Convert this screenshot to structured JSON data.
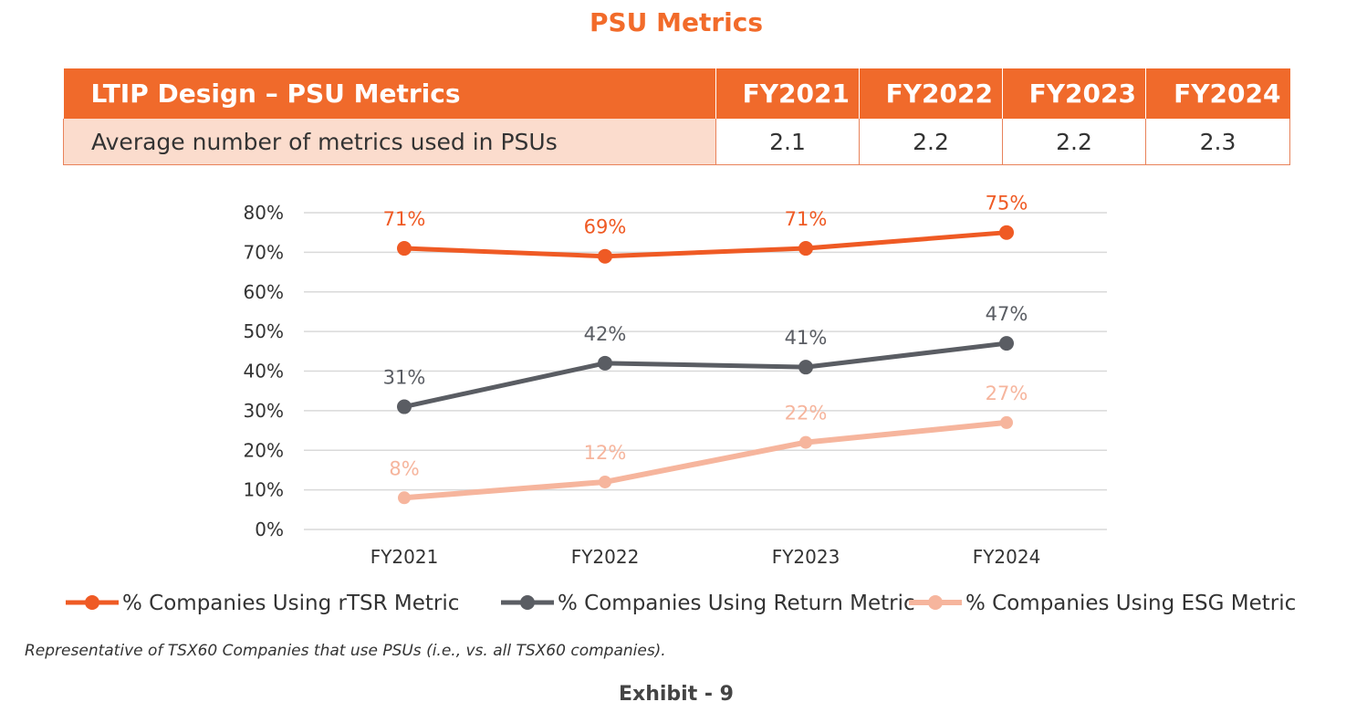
{
  "title": "PSU Metrics",
  "table": {
    "header_label": "LTIP Design – PSU Metrics",
    "years": [
      "FY2021",
      "FY2022",
      "FY2023",
      "FY2024"
    ],
    "row_label": "Average number of metrics used in PSUs",
    "values": [
      "2.1",
      "2.2",
      "2.2",
      "2.3"
    ]
  },
  "chart_data": {
    "type": "line",
    "categories": [
      "FY2021",
      "FY2022",
      "FY2023",
      "FY2024"
    ],
    "y_ticks": [
      "0%",
      "10%",
      "20%",
      "30%",
      "40%",
      "50%",
      "60%",
      "70%",
      "80%"
    ],
    "ylim": [
      0,
      80
    ],
    "grid": true,
    "legend": "bottom",
    "series": [
      {
        "name": "% Companies Using rTSR Metric",
        "values": [
          71,
          69,
          71,
          75
        ],
        "labels": [
          "71%",
          "69%",
          "71%",
          "75%"
        ],
        "color": "#ef5a24"
      },
      {
        "name": "% Companies Using Return Metric",
        "values": [
          31,
          42,
          41,
          47
        ],
        "labels": [
          "31%",
          "42%",
          "41%",
          "47%"
        ],
        "color": "#5a5d63"
      },
      {
        "name": "% Companies Using ESG Metric",
        "values": [
          8,
          12,
          22,
          27
        ],
        "labels": [
          "8%",
          "12%",
          "22%",
          "27%"
        ],
        "color": "#f6b59d"
      }
    ]
  },
  "note": "Representative of TSX60 Companies that use PSUs (i.e., vs. all TSX60 companies).",
  "exhibit": "Exhibit - 9"
}
